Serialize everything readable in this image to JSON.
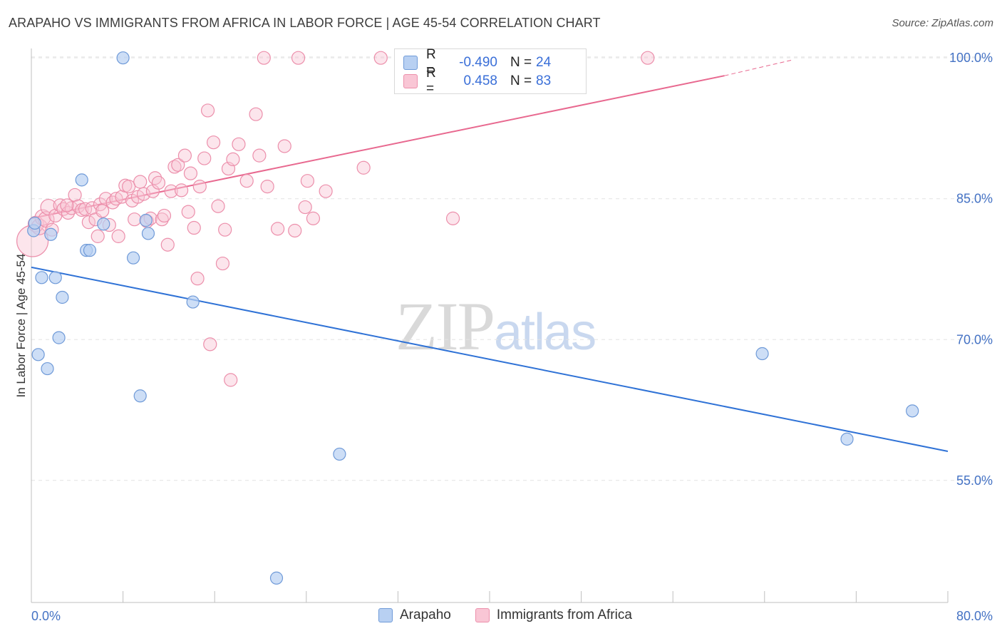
{
  "title": "ARAPAHO VS IMMIGRANTS FROM AFRICA IN LABOR FORCE | AGE 45-54 CORRELATION CHART",
  "source": "Source: ZipAtlas.com",
  "watermark": {
    "part1": "ZIP",
    "part2": "atlas"
  },
  "legend": {
    "rows": [
      {
        "r_label": "R =",
        "r_value": "-0.490",
        "n_label": "N =",
        "n_value": "24"
      },
      {
        "r_label": "R =",
        "r_value": "0.458",
        "n_label": "N =",
        "n_value": "83"
      }
    ]
  },
  "bottom_legend": {
    "series1": "Arapaho",
    "series2": "Immigrants from Africa"
  },
  "colors": {
    "arapaho_fill": "#b8d0f2",
    "arapaho_stroke": "#6f9ad8",
    "arapaho_line": "#2f72d6",
    "africa_fill": "#f9c6d5",
    "africa_stroke": "#ec8fab",
    "africa_line": "#e8688f",
    "tick_label": "#4472c4",
    "grid": "#e3e3e3"
  },
  "chart_data": {
    "type": "scatter",
    "title": "ARAPAHO VS IMMIGRANTS FROM AFRICA IN LABOR FORCE | AGE 45-54 CORRELATION CHART",
    "xlabel": "",
    "ylabel": "In Labor Force | Age 45-54",
    "xlim": [
      0,
      80
    ],
    "ylim": [
      42,
      101
    ],
    "x_tick_labels": [
      "0.0%",
      "80.0%"
    ],
    "y_ticks": [
      55,
      70,
      85,
      100
    ],
    "y_tick_labels": [
      "55.0%",
      "70.0%",
      "85.0%",
      "100.0%"
    ],
    "grid": true,
    "legend_position": "top-center",
    "series": [
      {
        "name": "Arapaho",
        "r": -0.49,
        "n": 24,
        "trend": {
          "x": [
            0,
            80
          ],
          "y": [
            77.7,
            58.1
          ]
        },
        "points": [
          [
            0.2,
            81.6
          ],
          [
            0.6,
            68.4
          ],
          [
            0.9,
            76.6
          ],
          [
            1.4,
            66.9
          ],
          [
            1.7,
            81.2
          ],
          [
            2.1,
            76.6
          ],
          [
            2.4,
            70.2
          ],
          [
            2.7,
            74.5
          ],
          [
            4.4,
            87.0
          ],
          [
            4.8,
            79.5
          ],
          [
            5.1,
            79.5
          ],
          [
            6.3,
            82.3
          ],
          [
            8.0,
            100.0
          ],
          [
            8.9,
            78.7
          ],
          [
            9.5,
            64.0
          ],
          [
            10.0,
            82.7
          ],
          [
            10.2,
            81.3
          ],
          [
            14.1,
            74.0
          ],
          [
            21.4,
            44.6
          ],
          [
            26.9,
            57.8
          ],
          [
            63.8,
            68.5
          ],
          [
            71.2,
            59.4
          ],
          [
            76.9,
            62.4
          ],
          [
            0.3,
            82.4
          ]
        ]
      },
      {
        "name": "Immigrants from Africa",
        "r": 0.458,
        "n": 83,
        "trend": {
          "x": [
            0,
            60.5
          ],
          "y": [
            82.9,
            98.1
          ]
        },
        "trend_dashed": {
          "x": [
            60.5,
            66.5
          ],
          "y": [
            98.1,
            99.8
          ]
        },
        "points": [
          [
            0.1,
            80.5
          ],
          [
            0.4,
            82.3
          ],
          [
            0.7,
            82.0
          ],
          [
            1.0,
            83.0
          ],
          [
            1.3,
            82.8
          ],
          [
            1.5,
            84.1
          ],
          [
            1.8,
            81.7
          ],
          [
            2.1,
            83.2
          ],
          [
            2.5,
            84.3
          ],
          [
            2.8,
            83.9
          ],
          [
            3.2,
            83.5
          ],
          [
            3.5,
            84.0
          ],
          [
            3.8,
            85.4
          ],
          [
            4.1,
            84.2
          ],
          [
            4.4,
            83.8
          ],
          [
            4.7,
            83.9
          ],
          [
            5.0,
            82.5
          ],
          [
            5.3,
            84.0
          ],
          [
            5.6,
            82.8
          ],
          [
            5.8,
            81.0
          ],
          [
            6.0,
            84.4
          ],
          [
            6.2,
            83.7
          ],
          [
            6.5,
            85.0
          ],
          [
            6.8,
            82.2
          ],
          [
            7.1,
            84.6
          ],
          [
            7.4,
            85.0
          ],
          [
            7.6,
            81.0
          ],
          [
            7.9,
            85.2
          ],
          [
            8.2,
            86.4
          ],
          [
            8.5,
            86.3
          ],
          [
            8.8,
            84.8
          ],
          [
            9.0,
            82.8
          ],
          [
            9.3,
            85.2
          ],
          [
            9.5,
            86.8
          ],
          [
            9.8,
            85.5
          ],
          [
            10.1,
            82.6
          ],
          [
            10.4,
            82.9
          ],
          [
            10.6,
            85.8
          ],
          [
            10.8,
            87.2
          ],
          [
            11.1,
            86.7
          ],
          [
            11.4,
            82.8
          ],
          [
            11.6,
            83.2
          ],
          [
            11.9,
            80.1
          ],
          [
            12.2,
            85.8
          ],
          [
            12.5,
            88.4
          ],
          [
            12.8,
            88.6
          ],
          [
            13.1,
            85.9
          ],
          [
            13.4,
            89.6
          ],
          [
            13.7,
            83.6
          ],
          [
            13.9,
            87.7
          ],
          [
            14.2,
            81.9
          ],
          [
            14.5,
            76.5
          ],
          [
            14.7,
            86.3
          ],
          [
            15.1,
            89.3
          ],
          [
            15.4,
            94.4
          ],
          [
            15.6,
            69.5
          ],
          [
            15.9,
            91.0
          ],
          [
            16.3,
            84.2
          ],
          [
            16.7,
            78.1
          ],
          [
            16.9,
            81.7
          ],
          [
            17.2,
            88.2
          ],
          [
            17.4,
            65.7
          ],
          [
            17.6,
            89.2
          ],
          [
            18.1,
            90.8
          ],
          [
            18.8,
            86.9
          ],
          [
            19.6,
            94.0
          ],
          [
            19.9,
            89.6
          ],
          [
            20.3,
            100.0
          ],
          [
            20.6,
            86.3
          ],
          [
            21.5,
            81.8
          ],
          [
            22.1,
            90.6
          ],
          [
            23.3,
            100.0
          ],
          [
            23.0,
            81.6
          ],
          [
            23.9,
            84.1
          ],
          [
            24.1,
            86.9
          ],
          [
            24.6,
            82.9
          ],
          [
            25.7,
            85.8
          ],
          [
            29.0,
            88.3
          ],
          [
            30.5,
            100.0
          ],
          [
            33.0,
            100.0
          ],
          [
            36.8,
            82.9
          ],
          [
            53.8,
            100.0
          ],
          [
            3.1,
            84.3
          ]
        ]
      }
    ]
  }
}
